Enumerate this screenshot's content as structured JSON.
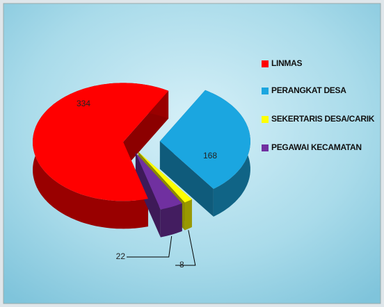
{
  "chart_data": {
    "type": "pie3d",
    "categories": [
      "LINMAS",
      "PERANGKAT DESA",
      "SEKERTARIS DESA/CARIK",
      "PEGAWAI KECAMATAN"
    ],
    "values": [
      334,
      168,
      8,
      22
    ],
    "colors": [
      "#ff0000",
      "#1ba6e0",
      "#ffff00",
      "#7030a0"
    ],
    "legend": "right"
  }
}
